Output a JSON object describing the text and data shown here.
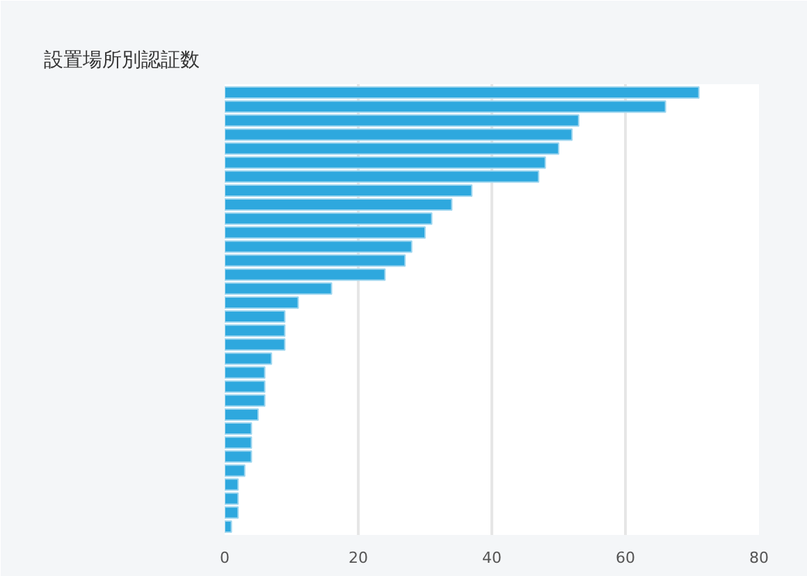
{
  "chart_data": {
    "type": "bar",
    "title": "設置場所別認証数",
    "orientation": "horizontal",
    "categories": [
      null,
      null,
      null,
      null,
      null,
      null,
      null,
      null,
      null,
      null,
      null,
      null,
      null,
      null,
      null,
      null,
      null,
      null,
      null,
      null,
      null,
      null,
      null,
      null,
      null,
      null,
      null,
      null,
      null,
      null,
      null,
      null
    ],
    "values": [
      71,
      66,
      53,
      52,
      50,
      48,
      47,
      37,
      34,
      31,
      30,
      28,
      27,
      24,
      16,
      11,
      9,
      9,
      9,
      7,
      6,
      6,
      6,
      5,
      4,
      4,
      4,
      3,
      2,
      2,
      2,
      1
    ],
    "color": "#2ea8de",
    "xlim": [
      0,
      80
    ],
    "xticks": [
      0,
      20,
      40,
      60,
      80
    ],
    "grid": "x",
    "tick_labels": "x"
  }
}
